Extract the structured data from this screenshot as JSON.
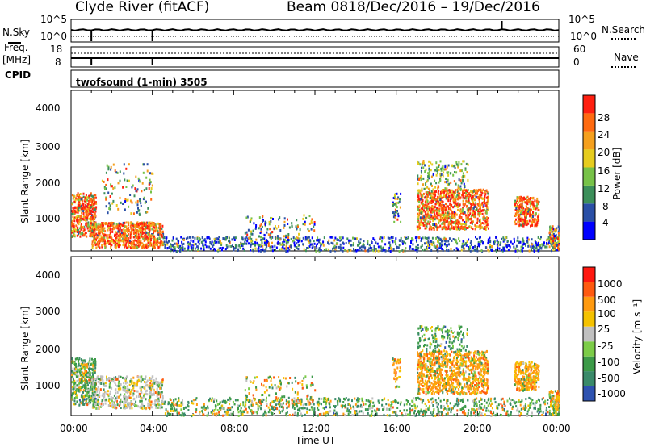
{
  "header": {
    "station": "Clyde River (fitACF)",
    "beam": "Beam 08",
    "dates": "18/Dec/2016 – 19/Dec/2016"
  },
  "panels": {
    "nsky": {
      "left_label": "N.Sky",
      "right_label": "N.Search",
      "ticks_left": [
        "10^5",
        "10^0"
      ],
      "ticks_right": [
        "10^5",
        "10^0"
      ]
    },
    "freq": {
      "left_label_1": "Freq.",
      "left_label_2": "[MHz]",
      "ticks_left": [
        "18",
        "8"
      ],
      "ticks_right": [
        "60",
        "0"
      ],
      "right_label": "Nave"
    },
    "cpid": {
      "label": "CPID",
      "program": "twofsound (1-min) 3505"
    }
  },
  "chart_data": [
    {
      "type": "heatmap",
      "name": "Power",
      "ylabel": "Slant Range [km]",
      "ylim": [
        180,
        4600
      ],
      "yticks": [
        "4000",
        "3000",
        "2000",
        "1000"
      ],
      "colorbar_label": "Power [dB]",
      "colorbar_ticks": [
        "28",
        "24",
        "20",
        "16",
        "12",
        "8",
        "4"
      ],
      "colors": [
        "#0000ff",
        "#2a4fa6",
        "#3c8f5a",
        "#77c248",
        "#e6cc1e",
        "#f5a01e",
        "#ff6a10",
        "#ff1f10"
      ],
      "approx_echo_regions": [
        {
          "x_hours": [
            0.0,
            1.2
          ],
          "y_km": [
            600,
            1800
          ],
          "level": "high"
        },
        {
          "x_hours": [
            1.0,
            4.5
          ],
          "y_km": [
            300,
            1000
          ],
          "level": "high"
        },
        {
          "x_hours": [
            17.0,
            20.5
          ],
          "y_km": [
            800,
            2000
          ],
          "level": "high"
        },
        {
          "x_hours": [
            21.8,
            23.0
          ],
          "y_km": [
            900,
            1700
          ],
          "level": "high"
        },
        {
          "x_hours": [
            4.5,
            24.0
          ],
          "y_km": [
            200,
            600
          ],
          "level": "low"
        }
      ]
    },
    {
      "type": "heatmap",
      "name": "Velocity",
      "ylabel": "Slant Range [km]",
      "xlabel": "Time UT",
      "xticks": [
        "00:00",
        "04:00",
        "08:00",
        "12:00",
        "16:00",
        "20:00",
        "00:00"
      ],
      "ylim": [
        180,
        4600
      ],
      "yticks": [
        "4000",
        "3000",
        "2000",
        "1000"
      ],
      "colorbar_label": "Velocity [m s⁻¹]",
      "colorbar_ticks": [
        "1000",
        "500",
        "100",
        "25",
        "-25",
        "-100",
        "-500",
        "-1000"
      ],
      "colors": [
        "#2e52b0",
        "#3a8a6a",
        "#3c9a48",
        "#7ccc48",
        "#c0c0c0",
        "#f5c200",
        "#ff9a10",
        "#ff5a10",
        "#ff1810"
      ]
    }
  ]
}
